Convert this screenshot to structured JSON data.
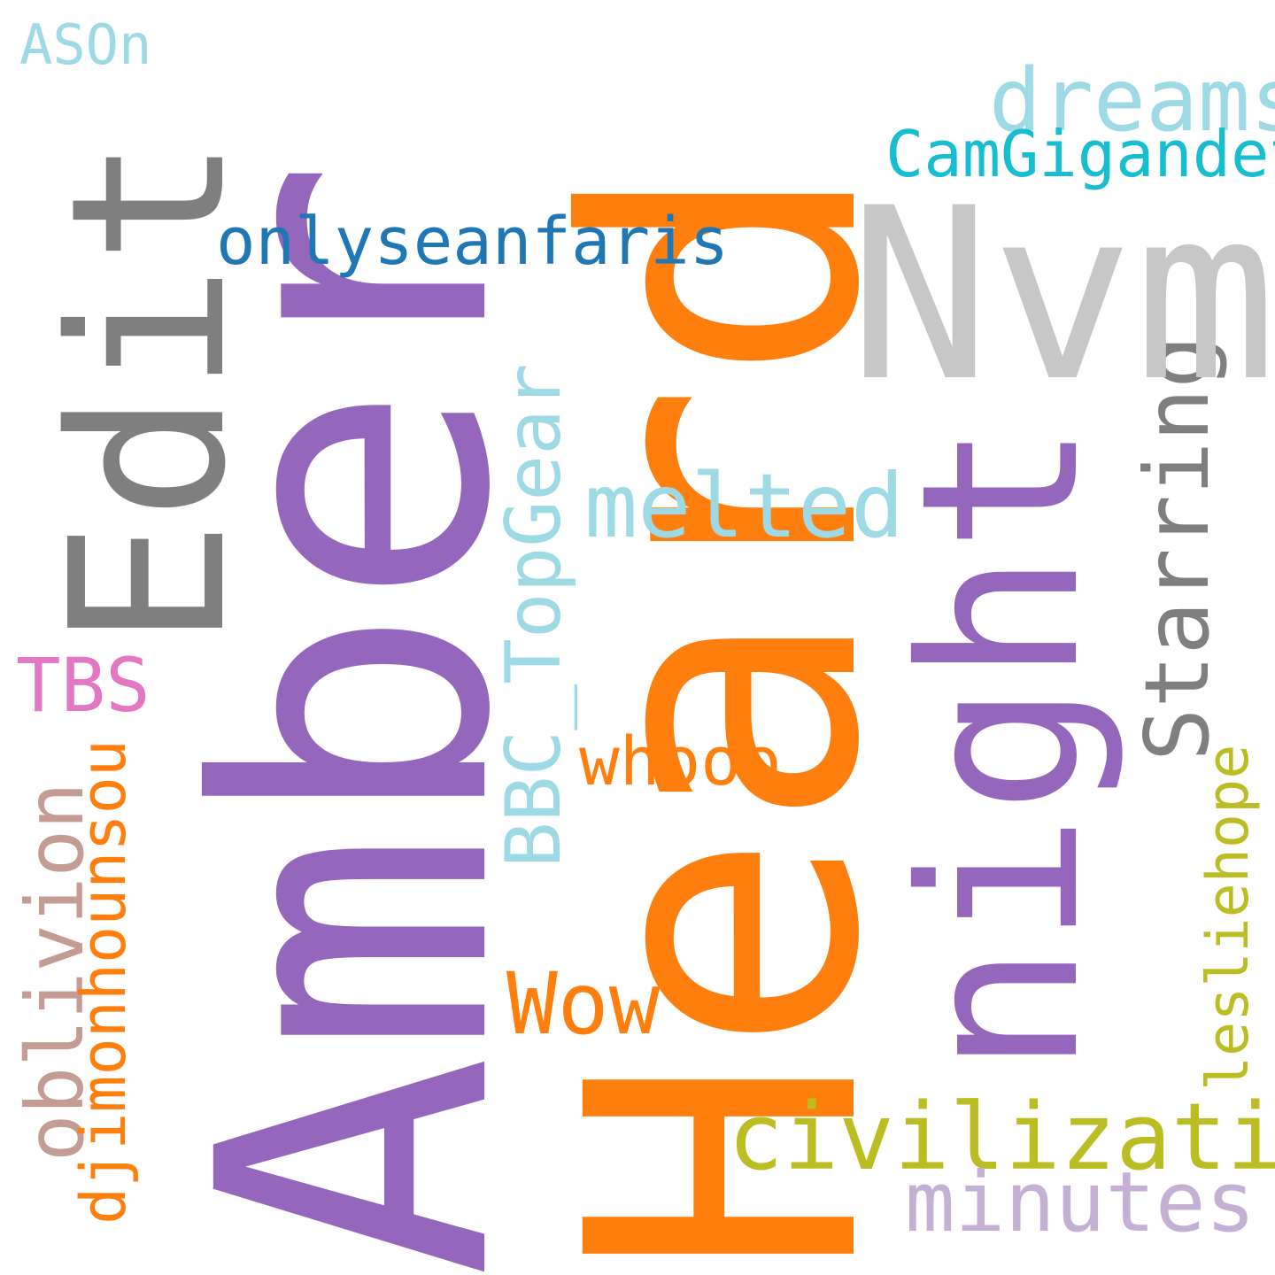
{
  "words": {
    "amber": {
      "text": "Amber",
      "color": "#9467bd"
    },
    "heard": {
      "text": "Heard",
      "color": "#ff7f0e"
    },
    "edit": {
      "text": "Edit",
      "color": "#7f7f7f"
    },
    "nvm": {
      "text": "Nvm",
      "color": "#c7c7c7"
    },
    "night": {
      "text": "night",
      "color": "#9467bd"
    },
    "dreams": {
      "text": "dreams",
      "color": "#9edae5"
    },
    "camgigandet": {
      "text": "CamGigandet",
      "color": "#17becf"
    },
    "onlyseanfaris": {
      "text": "onlyseanfaris",
      "color": "#1f77b4"
    },
    "melted": {
      "text": "melted",
      "color": "#9edae5"
    },
    "bbc_topgear": {
      "text": "BBC_TopGear",
      "color": "#9edae5"
    },
    "starring": {
      "text": "Starring",
      "color": "#7f7f7f"
    },
    "tbs": {
      "text": "TBS",
      "color": "#e377c2"
    },
    "whooo": {
      "text": "whooo",
      "color": "#ff7f0e"
    },
    "oblivion": {
      "text": "oblivion",
      "color": "#c49c94"
    },
    "djimonhounsou": {
      "text": "djimonhounsou",
      "color": "#ff7f0e"
    },
    "wow": {
      "text": "Wow",
      "color": "#ff7f0e"
    },
    "lesliehope": {
      "text": "lesliehope",
      "color": "#bcbd22"
    },
    "civilization": {
      "text": "civilization",
      "color": "#bcbd22"
    },
    "minutes": {
      "text": "minutes",
      "color": "#c5b0d5"
    },
    "ason": {
      "text": "ASOn",
      "color": "#9edae5"
    }
  }
}
